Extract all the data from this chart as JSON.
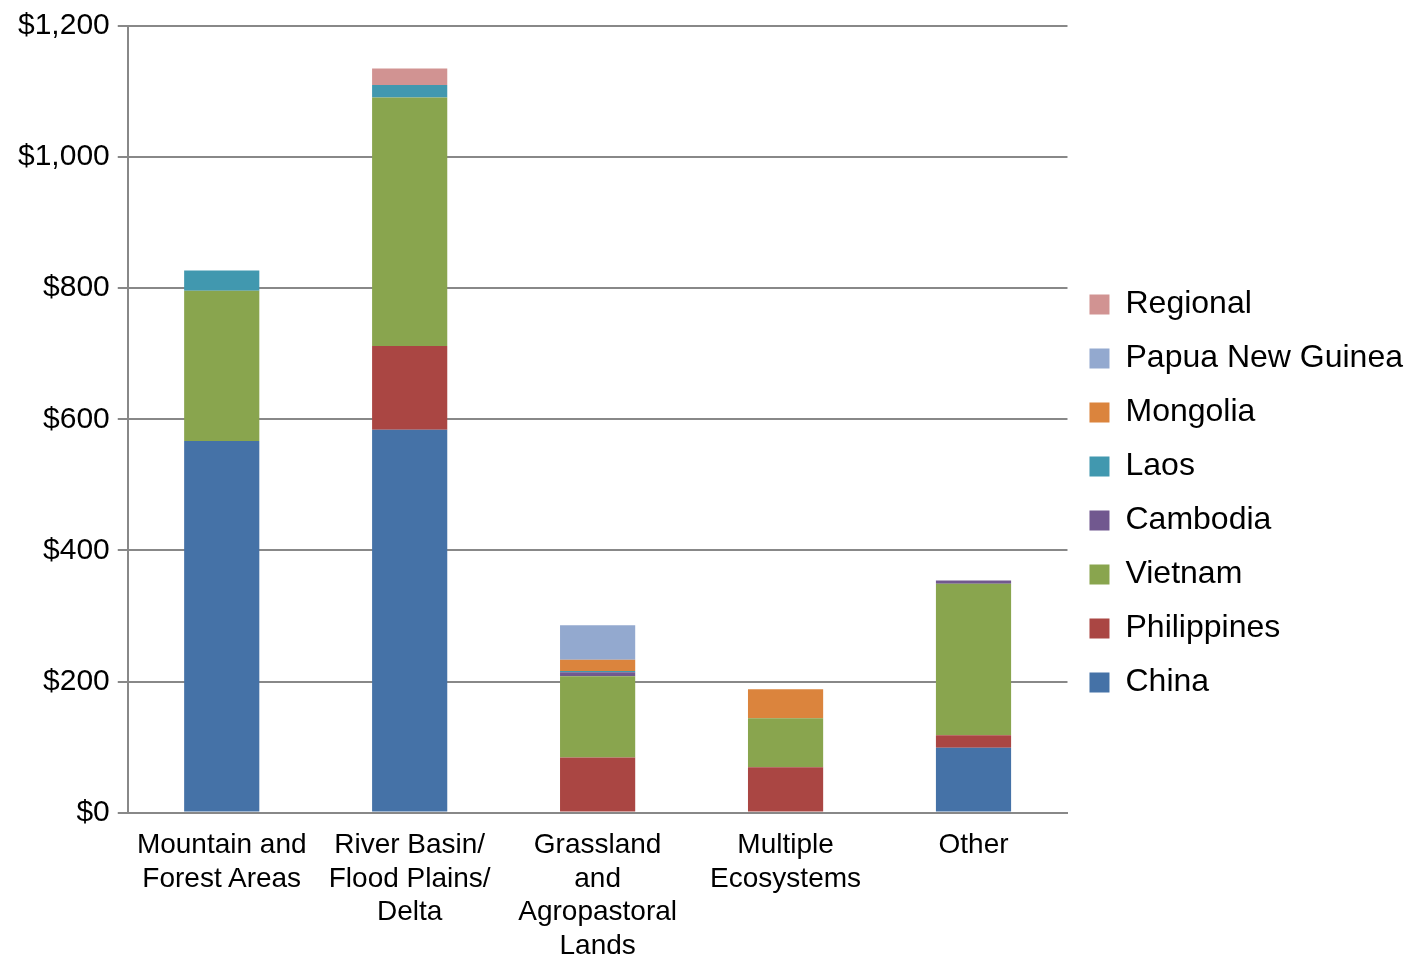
{
  "chart_data": {
    "type": "bar",
    "stacked": true,
    "categories": [
      "Mountain and Forest Areas",
      "River Basin/ Flood Plains/ Delta",
      "Grassland and Agropastoral Lands",
      "Multiple Ecosystems",
      "Other"
    ],
    "series": [
      {
        "name": "China",
        "color": "#4572a7",
        "values": [
          567,
          584,
          null,
          null,
          99
        ]
      },
      {
        "name": "Philippines",
        "color": "#aa4643",
        "values": [
          null,
          128,
          84,
          69,
          19
        ]
      },
      {
        "name": "Vietnam",
        "color": "#89a54e",
        "values": [
          229,
          379,
          124,
          75,
          231
        ]
      },
      {
        "name": "Cambodia",
        "color": "#71588f",
        "values": [
          null,
          null,
          6,
          null,
          5
        ]
      },
      {
        "name": "Laos",
        "color": "#4198af",
        "values": [
          31,
          19,
          2,
          null,
          null
        ]
      },
      {
        "name": "Mongolia",
        "color": "#db843d",
        "values": [
          null,
          null,
          17,
          44,
          null
        ]
      },
      {
        "name": "Papua New Guinea",
        "color": "#93a9cf",
        "values": [
          null,
          null,
          53,
          null,
          null
        ]
      },
      {
        "name": "Regional",
        "color": "#d19392",
        "values": [
          null,
          25,
          null,
          null,
          null
        ]
      }
    ],
    "ylim": [
      0,
      1200
    ],
    "yticks": [
      {
        "value": 0,
        "label": "$0"
      },
      {
        "value": 200,
        "label": "$200"
      },
      {
        "value": 400,
        "label": "$400"
      },
      {
        "value": 600,
        "label": "$600"
      },
      {
        "value": 800,
        "label": "$800"
      },
      {
        "value": 1000,
        "label": "$1,000"
      },
      {
        "value": 1200,
        "label": "$1,200"
      }
    ],
    "grid": "y",
    "legend": "right"
  }
}
